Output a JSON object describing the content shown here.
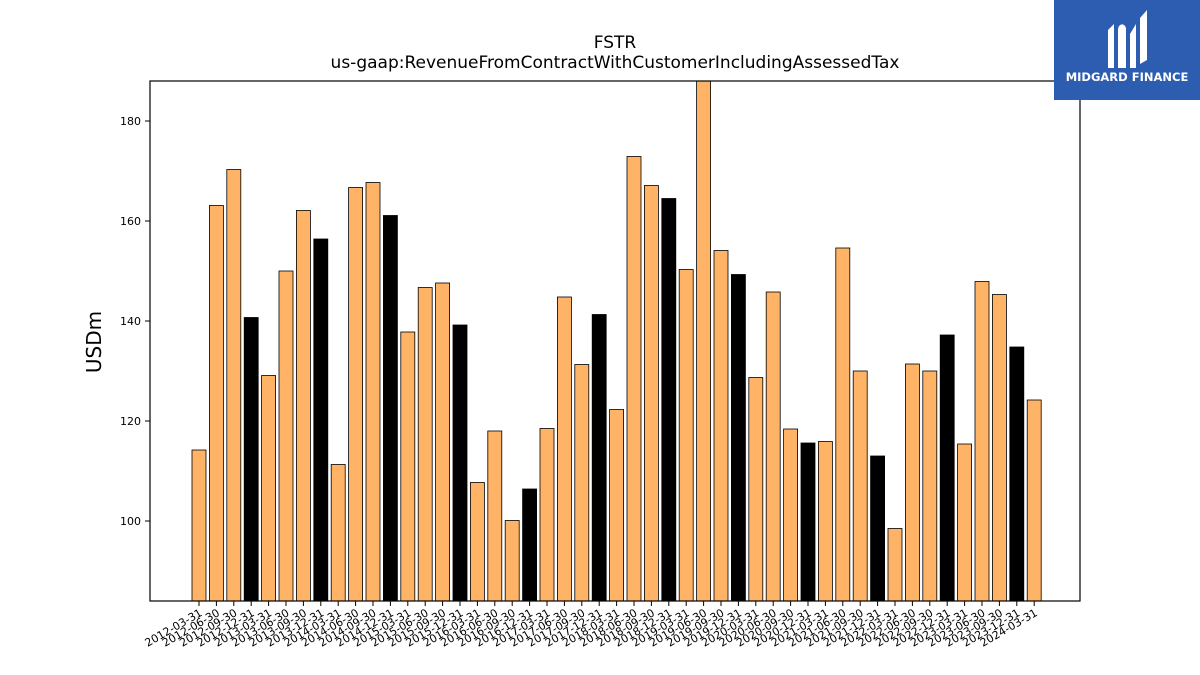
{
  "brand": {
    "name": "MIDGARD FINANCE",
    "color": "#2d5db0"
  },
  "colors": {
    "bar_default": "#ffb366",
    "bar_highlight": "#000000",
    "edge": "#000000"
  },
  "chart_data": {
    "type": "bar",
    "title": "FSTR",
    "subtitle": "us-gaap:RevenueFromContractWithCustomerIncludingAssessedTax",
    "xlabel": "",
    "ylabel": "USDm",
    "ylim": [
      84,
      188
    ],
    "yticks": [
      100,
      120,
      140,
      160,
      180
    ],
    "grid": false,
    "categories": [
      "2012-03-31",
      "2012-06-30",
      "2012-09-30",
      "2012-12-31",
      "2013-03-31",
      "2013-06-30",
      "2013-09-30",
      "2013-12-31",
      "2014-03-31",
      "2014-06-30",
      "2014-09-30",
      "2014-12-31",
      "2015-03-31",
      "2015-06-30",
      "2015-09-30",
      "2015-12-31",
      "2016-03-31",
      "2016-06-30",
      "2016-09-30",
      "2016-12-31",
      "2017-03-31",
      "2017-06-30",
      "2017-09-30",
      "2017-12-31",
      "2018-03-31",
      "2018-06-30",
      "2018-09-30",
      "2018-12-31",
      "2019-03-31",
      "2019-06-30",
      "2019-09-30",
      "2019-12-31",
      "2020-03-31",
      "2020-06-30",
      "2020-09-30",
      "2020-12-31",
      "2021-03-31",
      "2021-06-30",
      "2021-09-30",
      "2021-12-31",
      "2022-03-31",
      "2022-06-30",
      "2022-09-30",
      "2022-12-31",
      "2023-03-31",
      "2023-06-30",
      "2023-09-30",
      "2023-12-31",
      "2024-03-31"
    ],
    "values": [
      114.2,
      163.1,
      170.3,
      140.7,
      129.1,
      150.0,
      162.1,
      156.4,
      111.3,
      166.7,
      167.7,
      161.1,
      137.8,
      146.7,
      147.6,
      139.2,
      107.7,
      118.0,
      100.1,
      106.4,
      118.5,
      144.8,
      131.3,
      141.3,
      122.3,
      172.9,
      167.1,
      164.5,
      150.3,
      188.0,
      154.1,
      149.3,
      128.7,
      145.8,
      118.4,
      115.6,
      115.9,
      154.6,
      130.0,
      113.0,
      98.5,
      131.4,
      130.0,
      137.2,
      115.4,
      147.9,
      145.3,
      134.8,
      124.2
    ],
    "highlight": [
      false,
      false,
      false,
      true,
      false,
      false,
      false,
      true,
      false,
      false,
      false,
      true,
      false,
      false,
      false,
      true,
      false,
      false,
      false,
      true,
      false,
      false,
      false,
      true,
      false,
      false,
      false,
      true,
      false,
      false,
      false,
      true,
      false,
      false,
      false,
      true,
      false,
      false,
      false,
      true,
      false,
      false,
      false,
      true,
      false,
      false,
      false,
      true,
      false
    ]
  }
}
